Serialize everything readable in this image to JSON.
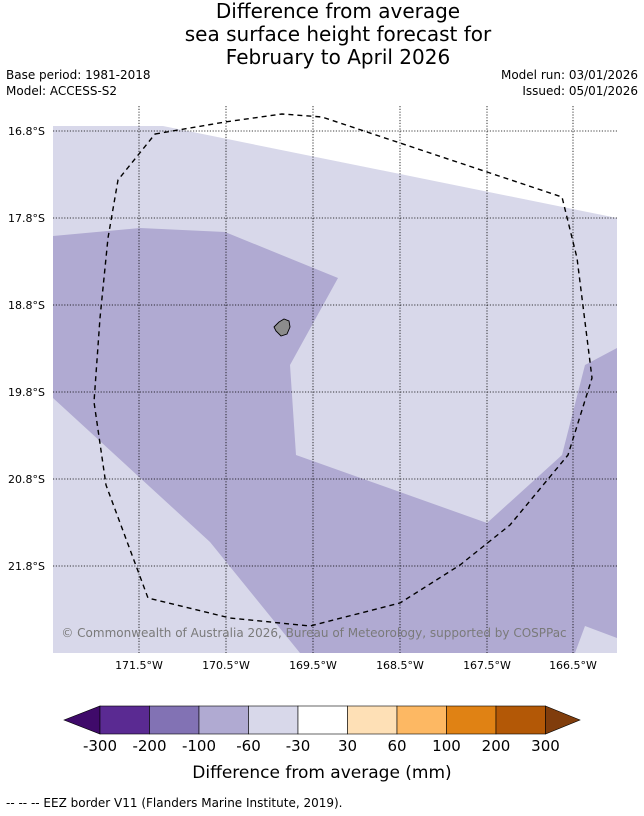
{
  "title": {
    "line1": "Difference from average",
    "line2": "sea surface height forecast for",
    "line3": "February to April 2026"
  },
  "meta": {
    "base_period": "Base period: 1981-2018",
    "model": "Model: ACCESS-S2",
    "model_run": "Model run: 03/01/2026",
    "issued": "Issued: 05/01/2026"
  },
  "map": {
    "lat_labels": [
      "16.8°S",
      "17.8°S",
      "18.8°S",
      "19.8°S",
      "20.8°S",
      "21.8°S"
    ],
    "lon_labels": [
      "171.5°W",
      "170.5°W",
      "169.5°W",
      "168.5°W",
      "167.5°W",
      "166.5°W"
    ],
    "copyright": "© Commonwealth of Australia 2026, Bureau of Meteorology, supported by COSPPac",
    "colors": {
      "class_-100_-60": "#b0aad2",
      "class_-60_-30": "#d8d8ea",
      "land": "#8c8c8c"
    }
  },
  "colorbar": {
    "ticks": [
      "-300",
      "-200",
      "-100",
      "-60",
      "-30",
      "30",
      "60",
      "100",
      "200",
      "300"
    ],
    "colors": [
      "#3f0a6a",
      "#5a2a92",
      "#8272b4",
      "#b0aad2",
      "#d8d8ea",
      "#ffffff",
      "#fee0b6",
      "#fdb863",
      "#e08214",
      "#b35806",
      "#803d0c"
    ],
    "label": "Difference from average (mm)"
  },
  "footnote": "--  --  -- EEZ border V11 (Flanders Marine Institute, 2019)."
}
